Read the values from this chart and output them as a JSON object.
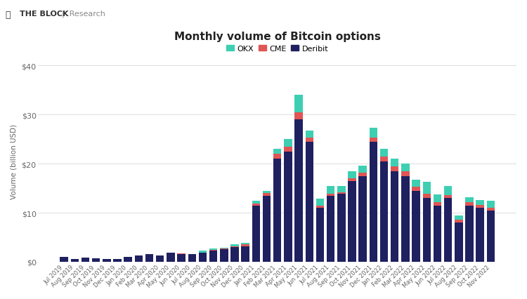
{
  "title": "Monthly volume of Bitcoin options",
  "ylabel": "Volume (billion USD)",
  "background_color": "#ffffff",
  "grid_color": "#dddddd",
  "colors": {
    "OKX": "#3ecfb2",
    "CME": "#e05555",
    "Deribit": "#1e2060"
  },
  "categories": [
    "Jul 2019",
    "Aug 2019",
    "Sep 2019",
    "Oct 2019",
    "Nov 2019",
    "Dec 2019",
    "Jan 2020",
    "Feb 2020",
    "Mar 2020",
    "Apr 2020",
    "May 2020",
    "Jun 2020",
    "Jul 2020",
    "Aug 2020",
    "Sep 2020",
    "Oct 2020",
    "Nov 2020",
    "Dec 2020",
    "Jan 2021",
    "Feb 2021",
    "Mar 2021",
    "Apr 2021",
    "May 2021",
    "Jun 2021",
    "Jul 2021",
    "Aug 2021",
    "Sep 2021",
    "Oct 2021",
    "Nov 2021",
    "Dec 2021",
    "Jan 2022",
    "Feb 2022",
    "Mar 2022",
    "Apr 2022",
    "May 2022",
    "Jun 2022",
    "Jul 2022",
    "Aug 2022",
    "Sep 2022",
    "Oct 2022",
    "Nov 2022"
  ],
  "deribit": [
    1.0,
    0.6,
    0.8,
    0.7,
    0.6,
    0.5,
    1.0,
    1.3,
    1.5,
    1.3,
    1.8,
    1.6,
    1.5,
    1.8,
    2.2,
    2.5,
    3.0,
    3.2,
    11.5,
    13.5,
    21.0,
    22.5,
    29.0,
    24.5,
    11.0,
    13.5,
    13.8,
    16.5,
    17.5,
    24.5,
    20.5,
    18.5,
    17.5,
    14.5,
    13.0,
    11.5,
    13.0,
    8.0,
    11.5,
    11.0,
    10.5
  ],
  "cme": [
    0.0,
    0.0,
    0.0,
    0.0,
    0.0,
    0.0,
    0.0,
    0.0,
    0.0,
    0.0,
    0.1,
    0.1,
    0.1,
    0.1,
    0.2,
    0.2,
    0.2,
    0.3,
    0.4,
    0.5,
    1.0,
    1.0,
    1.5,
    0.8,
    0.4,
    0.4,
    0.4,
    0.5,
    0.6,
    0.8,
    1.0,
    1.0,
    1.0,
    0.8,
    0.8,
    0.7,
    0.6,
    0.5,
    0.6,
    0.6,
    0.5
  ],
  "okx": [
    0.0,
    0.0,
    0.0,
    0.0,
    0.0,
    0.0,
    0.0,
    0.0,
    0.0,
    0.0,
    0.0,
    0.0,
    0.0,
    0.3,
    0.3,
    0.2,
    0.3,
    0.3,
    0.5,
    0.5,
    1.0,
    1.5,
    3.5,
    1.5,
    1.5,
    1.5,
    1.3,
    1.5,
    1.5,
    2.0,
    1.5,
    1.5,
    1.5,
    1.5,
    2.5,
    1.5,
    1.8,
    1.0,
    1.0,
    1.0,
    1.5
  ],
  "yticks": [
    0,
    10,
    20,
    30,
    40
  ],
  "ylim": [
    0,
    41
  ],
  "logo_text": "THE BLOCK  |  Research"
}
